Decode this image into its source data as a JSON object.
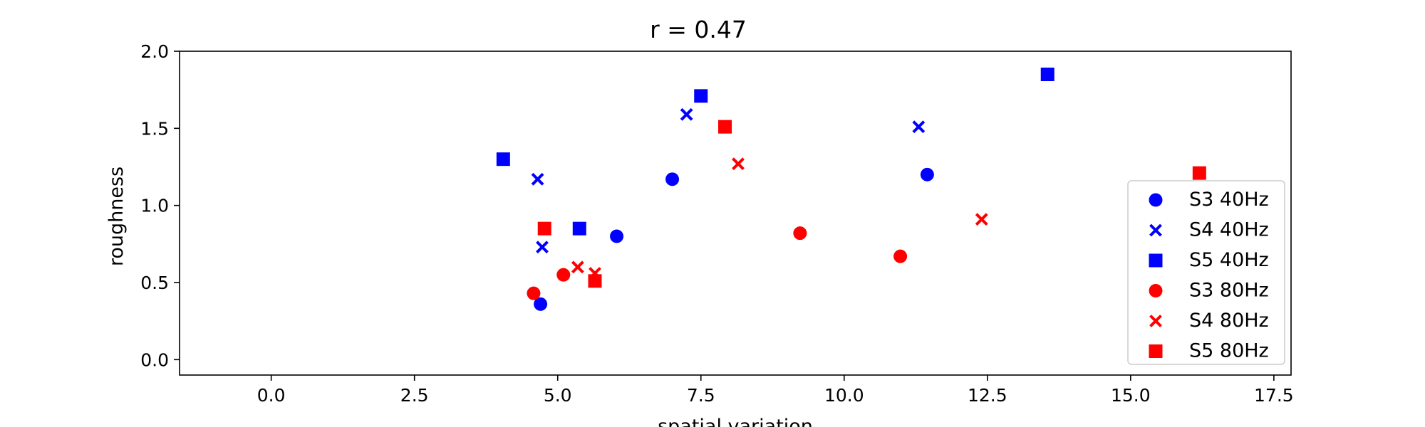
{
  "chart_data": {
    "type": "scatter",
    "title": "r = 0.47",
    "xlabel": "spatial variation",
    "ylabel": "roughness",
    "xlim": [
      -1.6,
      17.8
    ],
    "ylim": [
      -0.1,
      2.0
    ],
    "xticks": [
      "0.0",
      "2.5",
      "5.0",
      "7.5",
      "10.0",
      "12.5",
      "15.0",
      "17.5"
    ],
    "yticks": [
      "0.0",
      "0.5",
      "1.0",
      "1.5",
      "2.0"
    ],
    "grid": false,
    "legend_position": "lower right",
    "series": [
      {
        "name": "S3 40Hz",
        "marker": "circle",
        "color": "#0000ff",
        "points": [
          [
            4.7,
            0.36
          ],
          [
            6.03,
            0.8
          ],
          [
            7.0,
            1.17
          ],
          [
            11.45,
            1.2
          ]
        ]
      },
      {
        "name": "S4 40Hz",
        "marker": "x",
        "color": "#0000ff",
        "points": [
          [
            4.65,
            1.17
          ],
          [
            4.73,
            0.73
          ],
          [
            7.25,
            1.59
          ],
          [
            11.3,
            1.51
          ]
        ]
      },
      {
        "name": "S5 40Hz",
        "marker": "square",
        "color": "#0000ff",
        "points": [
          [
            4.05,
            1.3
          ],
          [
            5.38,
            0.85
          ],
          [
            7.5,
            1.71
          ],
          [
            13.55,
            1.85
          ]
        ]
      },
      {
        "name": "S3 80Hz",
        "marker": "circle",
        "color": "#ff0000",
        "points": [
          [
            4.58,
            0.43
          ],
          [
            5.1,
            0.55
          ],
          [
            9.23,
            0.82
          ],
          [
            10.98,
            0.67
          ]
        ]
      },
      {
        "name": "S4 80Hz",
        "marker": "x",
        "color": "#ff0000",
        "points": [
          [
            5.35,
            0.6
          ],
          [
            5.65,
            0.56
          ],
          [
            8.15,
            1.27
          ],
          [
            12.4,
            0.91
          ]
        ]
      },
      {
        "name": "S5 80Hz",
        "marker": "square",
        "color": "#ff0000",
        "points": [
          [
            4.77,
            0.85
          ],
          [
            5.65,
            0.51
          ],
          [
            7.92,
            1.51
          ],
          [
            16.2,
            1.21
          ]
        ]
      }
    ]
  }
}
